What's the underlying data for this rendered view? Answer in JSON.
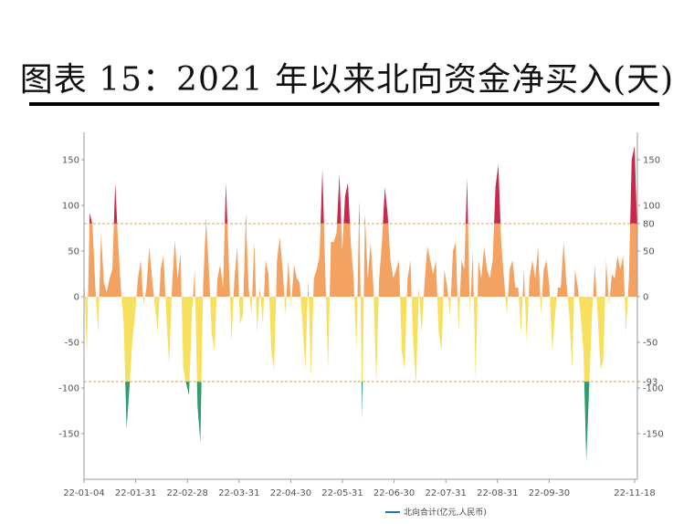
{
  "title": "图表 15：2021 年以来北向资金净买入(天)",
  "colors": {
    "above_upper": "#c8284c",
    "between_positive": "#f4a261",
    "between_negative": "#f6e05e",
    "below_lower": "#2f9b6e",
    "threshold_line": "#e0a050",
    "axis": "#999999",
    "legend_line": "#1f77b4"
  },
  "chart_data": {
    "type": "area",
    "x_tick_labels": [
      "22-01-04",
      "22-01-31",
      "22-02-28",
      "22-03-31",
      "22-04-30",
      "22-05-31",
      "22-06-30",
      "22-07-31",
      "22-08-31",
      "22-09-30",
      "22-11-18"
    ],
    "left_y_ticks": [
      "150",
      "100",
      "50",
      "0",
      "-50",
      "-100",
      "-150"
    ],
    "right_y_ticks": [
      "150",
      "100",
      "80",
      "50",
      "0",
      "-50",
      "-93",
      "-100",
      "-150"
    ],
    "ylim": [
      -200,
      180
    ],
    "thresholds": {
      "upper": 80,
      "lower": -93
    },
    "legend": "北向合计(亿元,人民币)",
    "values": [
      30,
      -65,
      92,
      78,
      10,
      -40,
      70,
      15,
      5,
      20,
      30,
      125,
      60,
      10,
      -30,
      -145,
      -100,
      -50,
      -20,
      20,
      40,
      -10,
      10,
      55,
      20,
      -10,
      -40,
      30,
      45,
      -20,
      -75,
      10,
      62,
      20,
      48,
      -80,
      -95,
      -108,
      -20,
      30,
      -120,
      -160,
      15,
      85,
      30,
      -40,
      -60,
      20,
      35,
      10,
      125,
      40,
      -50,
      20,
      55,
      -30,
      -20,
      90,
      10,
      -20,
      60,
      -40,
      10,
      -30,
      40,
      25,
      -60,
      -80,
      40,
      65,
      30,
      -20,
      40,
      -10,
      35,
      20,
      15,
      -30,
      -80,
      20,
      -90,
      20,
      30,
      45,
      140,
      30,
      -80,
      60,
      60,
      70,
      135,
      50,
      110,
      125,
      60,
      20,
      -60,
      105,
      -135,
      90,
      20,
      60,
      10,
      -96,
      20,
      60,
      120,
      90,
      40,
      20,
      30,
      40,
      -60,
      -80,
      20,
      40,
      -50,
      -96,
      10,
      -40,
      15,
      55,
      40,
      25,
      40,
      -40,
      -60,
      30,
      10,
      -20,
      50,
      60,
      -40,
      40,
      30,
      130,
      -20,
      50,
      -90,
      40,
      20,
      55,
      30,
      20,
      40,
      120,
      145,
      60,
      20,
      -20,
      30,
      40,
      10,
      10,
      -40,
      30,
      -50,
      20,
      40,
      20,
      55,
      -20,
      30,
      40,
      10,
      -60,
      -20,
      10,
      10,
      60,
      15,
      -20,
      -80,
      30,
      10,
      -20,
      -60,
      -180,
      -100,
      -20,
      35,
      -20,
      -80,
      -70,
      40,
      -10,
      25,
      20,
      45,
      30,
      45,
      -40,
      20,
      150,
      165,
      70
    ]
  }
}
